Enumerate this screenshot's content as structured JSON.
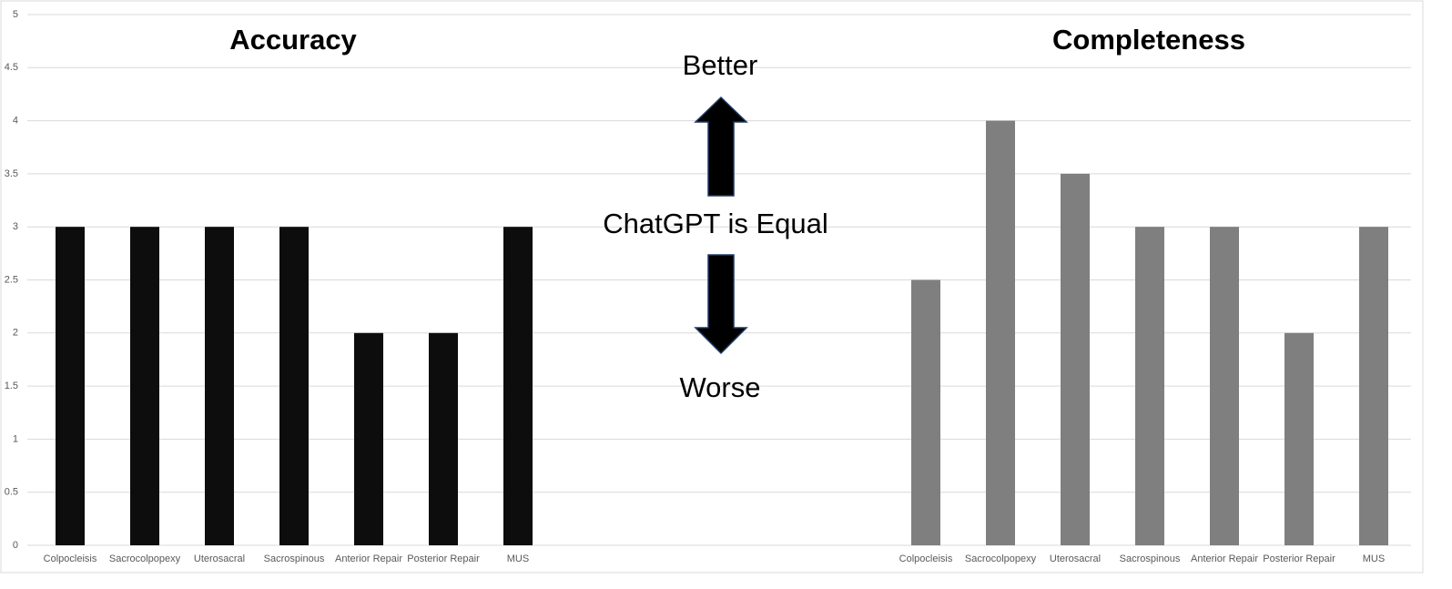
{
  "chart_data": [
    {
      "type": "bar",
      "title": "Accuracy",
      "categories": [
        "Colpocleisis",
        "Sacrocolpopexy",
        "Uterosacral",
        "Sacrospinous",
        "Anterior Repair",
        "Posterior Repair",
        "MUS"
      ],
      "values": [
        3,
        3,
        3,
        3,
        2,
        2,
        3
      ],
      "color": "#0d0d0d",
      "ylim": [
        0,
        5
      ],
      "yticks": [
        0,
        0.5,
        1,
        1.5,
        2,
        2.5,
        3,
        3.5,
        4,
        4.5,
        5
      ],
      "grid": true
    },
    {
      "type": "bar",
      "title": "Completeness",
      "categories": [
        "Colpocleisis",
        "Sacrocolpopexy",
        "Uterosacral",
        "Sacrospinous",
        "Anterior Repair",
        "Posterior Repair",
        "MUS"
      ],
      "values": [
        2.5,
        4,
        3.5,
        3,
        3,
        2,
        3
      ],
      "color": "#7f7f7f",
      "ylim": [
        0,
        5
      ]
    }
  ],
  "annotations": [
    "Better",
    "ChatGPT is Equal",
    "Worse"
  ]
}
